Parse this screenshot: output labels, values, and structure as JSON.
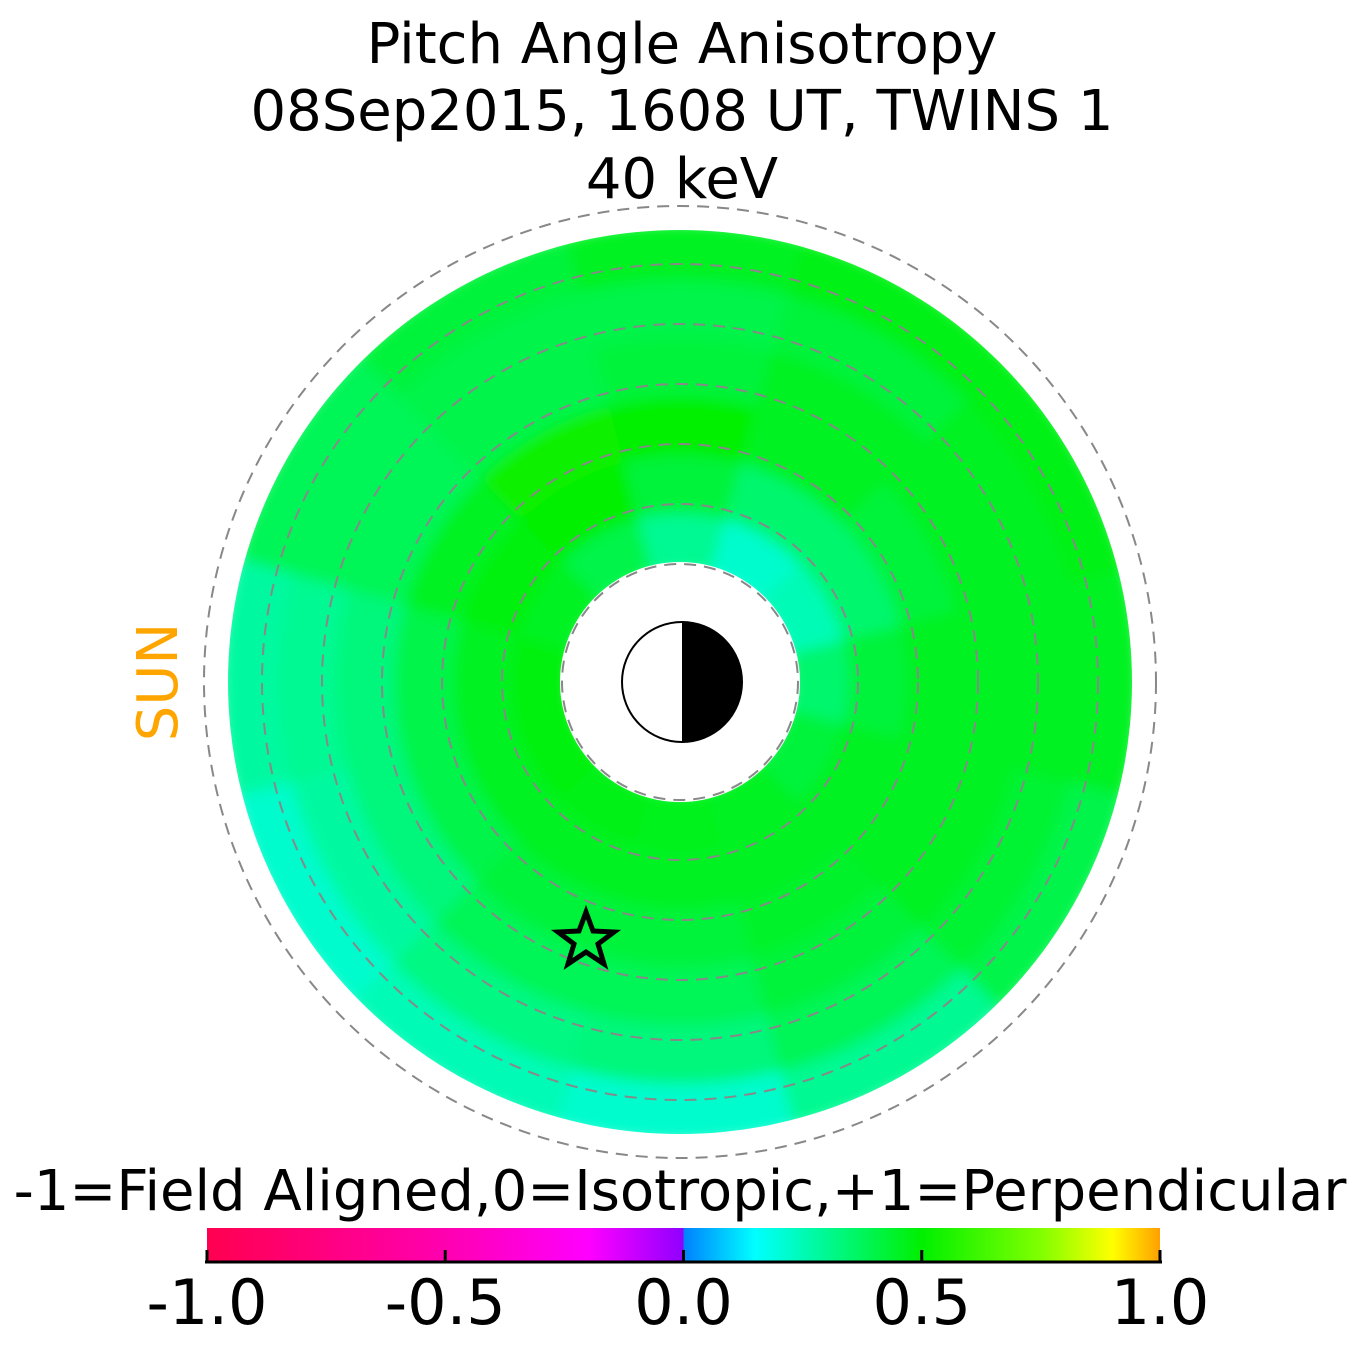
{
  "chart_data": {
    "type": "polar-heatmap",
    "title": [
      "Pitch Angle Anisotropy",
      "08Sep2015, 1608 UT,  TWINS 1",
      "40 keV"
    ],
    "side_label": "SUN",
    "side_label_color": "#ffa500",
    "values": [
      [
        0.35,
        0.25,
        0.22,
        0.3,
        0.4,
        0.45,
        0.48,
        0.48,
        0.47,
        0.46,
        0.45,
        0.42
      ],
      [
        0.42,
        0.35,
        0.35,
        0.42,
        0.5,
        0.48,
        0.45,
        0.45,
        0.45,
        0.45,
        0.45,
        0.45
      ],
      [
        0.45,
        0.42,
        0.45,
        0.5,
        0.52,
        0.45,
        0.4,
        0.4,
        0.42,
        0.42,
        0.44,
        0.45
      ],
      [
        0.45,
        0.45,
        0.45,
        0.42,
        0.4,
        0.38,
        0.33,
        0.33,
        0.38,
        0.38,
        0.42,
        0.45
      ],
      [
        0.45,
        0.45,
        0.42,
        0.4,
        0.4,
        0.38,
        0.3,
        0.28,
        0.32,
        0.33,
        0.38,
        0.43
      ],
      [
        0.45,
        0.47,
        0.47,
        0.45,
        0.42,
        0.38,
        0.28,
        0.22,
        0.25,
        0.22,
        0.3,
        0.4
      ]
    ],
    "colorbar": {
      "label": "-1=Field Aligned,0=Isotropic,+1=Perpendicular",
      "lim": [
        -1,
        1
      ],
      "ticks": [
        {
          "value": -1,
          "label": "-1.0"
        },
        {
          "value": -0.5,
          "label": "-0.5"
        },
        {
          "value": 0,
          "label": "0.0"
        },
        {
          "value": 0.5,
          "label": "0.5"
        },
        {
          "value": 1,
          "label": "1.0"
        }
      ],
      "colormap": [
        {
          "value": -1,
          "color": "#ff0050"
        },
        {
          "value": -0.5,
          "color": "#ff00b0"
        },
        {
          "value": -0.2,
          "color": "#ff00ff"
        },
        {
          "value": 0,
          "color": "#9000ff"
        },
        {
          "value": 0,
          "color": "#0080ff"
        },
        {
          "value": 0.15,
          "color": "#00ffff"
        },
        {
          "value": 0.5,
          "color": "#00f000"
        },
        {
          "value": 0.75,
          "color": "#80ff00"
        },
        {
          "value": 0.9,
          "color": "#ffff00"
        },
        {
          "value": 1,
          "color": "#ffa000"
        }
      ]
    }
  }
}
